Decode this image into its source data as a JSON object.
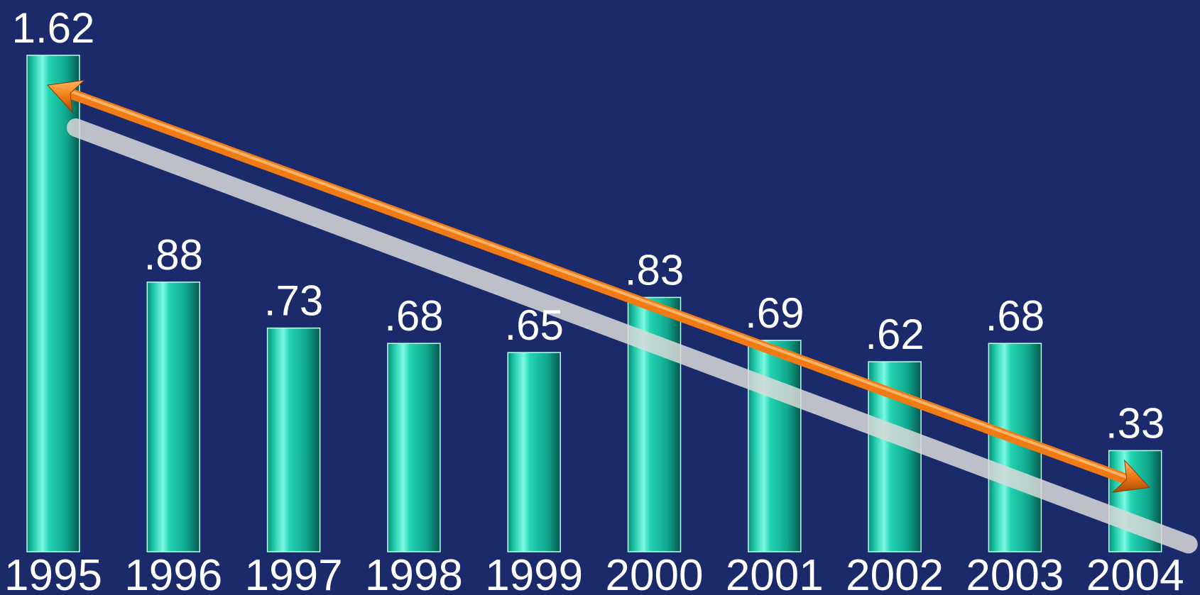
{
  "chart_data": {
    "type": "bar",
    "categories": [
      "1995",
      "1996",
      "1997",
      "1998",
      "1999",
      "2000",
      "2001",
      "2002",
      "2003",
      "2004"
    ],
    "values": [
      1.62,
      0.88,
      0.73,
      0.68,
      0.65,
      0.83,
      0.69,
      0.62,
      0.68,
      0.33
    ],
    "value_labels": [
      "1.62",
      ".88",
      ".73",
      ".68",
      ".65",
      ".83",
      ".69",
      ".62",
      ".68",
      ".33"
    ],
    "ylim": [
      0,
      1.62
    ],
    "grid": false,
    "legend": "none",
    "trend_arrow": {
      "from": "1995",
      "to": "2004",
      "direction": "down"
    }
  },
  "colors": {
    "background": "#1b2a6b",
    "bar": "#1fc9a8",
    "bar_highlight": "#6ff5dd",
    "bar_shadow": "#0a6f62",
    "arrow": "#f07a14",
    "arrow_shadow": "#d9d9d9",
    "text": "#ffffff"
  }
}
